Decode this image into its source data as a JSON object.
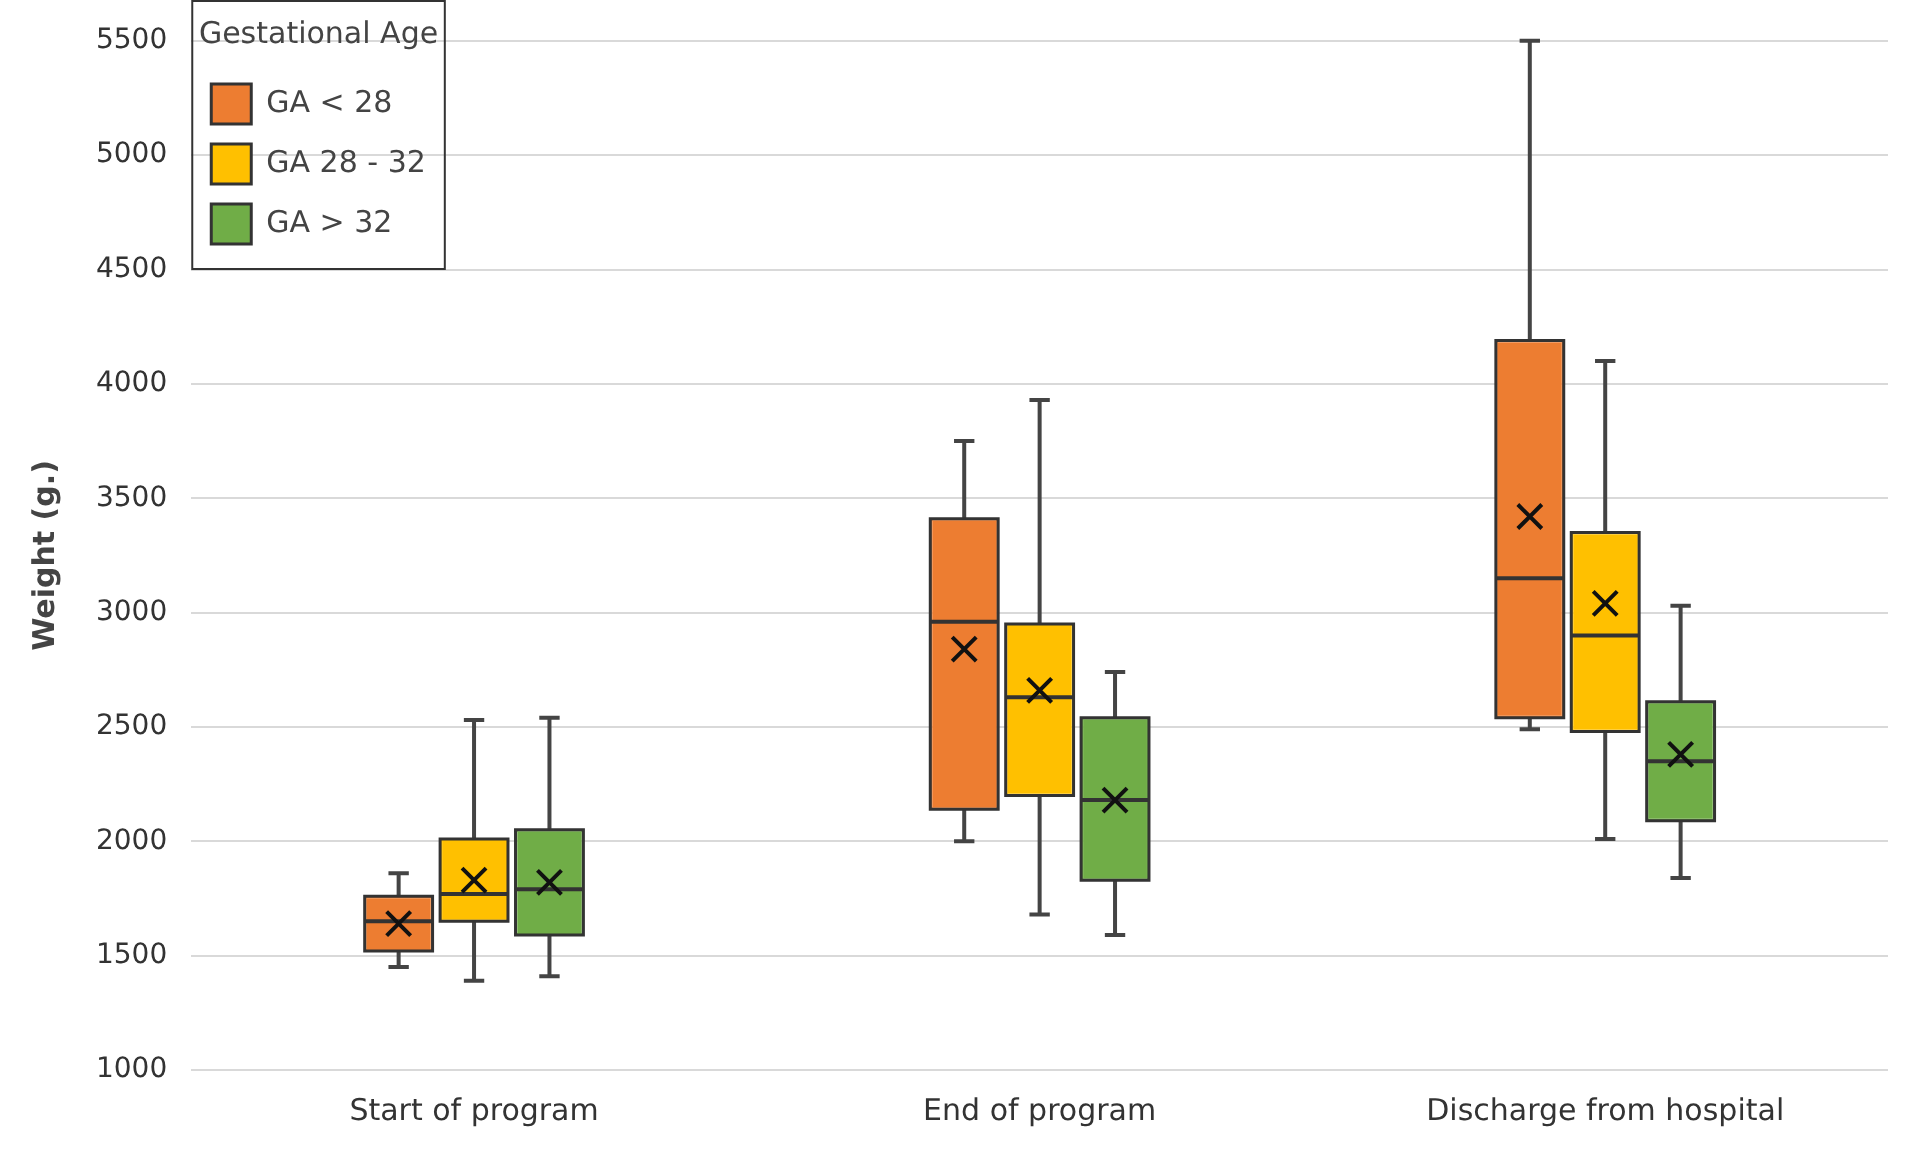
{
  "chart_data": {
    "type": "box",
    "ylabel": "Weight (g.)",
    "legend_title": "Gestational Age",
    "legend": "top left",
    "grid": "y",
    "categories": [
      "Start of program",
      "End of program",
      "Discharge from hospital"
    ],
    "ylim": [
      1000,
      5500
    ],
    "yticks": [
      1000,
      1500,
      2000,
      2500,
      3000,
      3500,
      4000,
      4500,
      5000,
      5500
    ],
    "series": [
      {
        "name": "GA < 28",
        "color": "#ed7d31",
        "boxes": [
          {
            "low": 1450,
            "q1": 1520,
            "median": 1650,
            "q3": 1760,
            "high": 1860,
            "mean": 1640
          },
          {
            "low": 2000,
            "q1": 2140,
            "median": 2960,
            "q3": 3410,
            "high": 3750,
            "mean": 2840
          },
          {
            "low": 2490,
            "q1": 2540,
            "median": 3150,
            "q3": 4190,
            "high": 5500,
            "mean": 3420
          }
        ]
      },
      {
        "name": "GA 28 - 32",
        "color": "#ffc000",
        "boxes": [
          {
            "low": 1390,
            "q1": 1650,
            "median": 1770,
            "q3": 2010,
            "high": 2530,
            "mean": 1830
          },
          {
            "low": 1680,
            "q1": 2200,
            "median": 2630,
            "q3": 2950,
            "high": 3930,
            "mean": 2660
          },
          {
            "low": 2010,
            "q1": 2480,
            "median": 2900,
            "q3": 3350,
            "high": 4100,
            "mean": 3040
          }
        ]
      },
      {
        "name": "GA > 32",
        "color": "#70ad47",
        "boxes": [
          {
            "low": 1410,
            "q1": 1590,
            "median": 1790,
            "q3": 2050,
            "high": 2540,
            "mean": 1820
          },
          {
            "low": 1590,
            "q1": 1830,
            "median": 2180,
            "q3": 2540,
            "high": 2740,
            "mean": 2180
          },
          {
            "low": 1840,
            "q1": 2090,
            "median": 2350,
            "q3": 2610,
            "high": 3030,
            "mean": 2380
          }
        ]
      }
    ]
  }
}
